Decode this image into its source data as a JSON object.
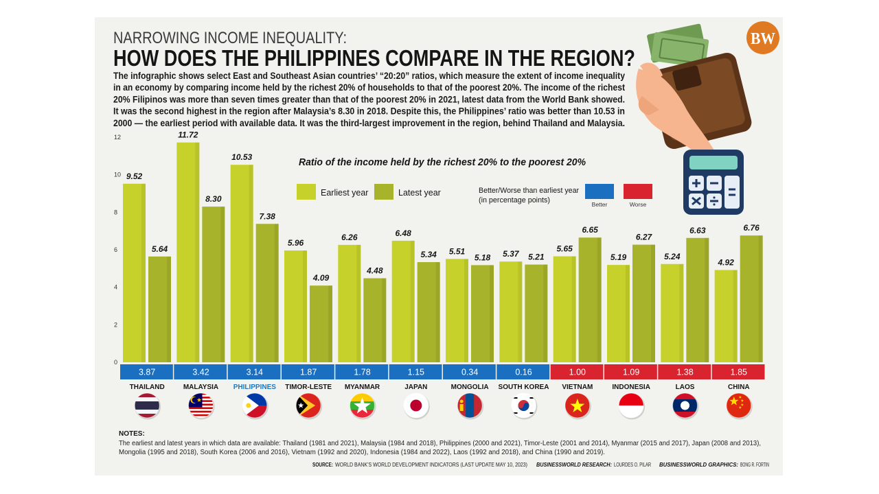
{
  "logo": "BW",
  "chart_data": {
    "type": "bar",
    "supertitle": "NARROWING INCOME INEQUALITY:",
    "title": "HOW DOES THE PHILIPPINES COMPARE IN THE REGION?",
    "description": [
      "The infographic shows select East and Southeast Asian countries’ “20:20” ratios, which measure the extent of income inequality",
      "in an economy by comparing income held by the richest 20% of households to that of the poorest 20%. The income of the richest",
      "20% Filipinos was more than seven times greater than that of the poorest 20% in 2021, latest data from the World Bank showed.",
      "It was the second highest in the region after Malaysia’s 8.30 in 2018. Despite this, the Philippines’ ratio was better than 10.53 in",
      "2000 — the earliest period with available data. It was the third-largest improvement in the region, behind Thailand and Malaysia."
    ],
    "subtitle": "Ratio of the income held by the richest 20% to the poorest 20%",
    "categories": [
      "THAILAND",
      "MALAYSIA",
      "PHILIPPINES",
      "TIMOR-LESTE",
      "MYANMAR",
      "JAPAN",
      "MONGOLIA",
      "SOUTH KOREA",
      "VIETNAM",
      "INDONESIA",
      "LAOS",
      "CHINA"
    ],
    "highlight_index": 2,
    "highlight_color": "#1a78c2",
    "series": [
      {
        "name": "Earliest year",
        "color": "#c6d22b",
        "values": [
          9.52,
          11.72,
          10.53,
          5.96,
          6.26,
          6.48,
          5.51,
          5.37,
          5.65,
          5.19,
          5.24,
          4.92
        ],
        "value_labels": [
          "9.52",
          "11.72",
          "10.53",
          "5.96",
          "6.26",
          "6.48",
          "5.51",
          "5.37",
          "5.65",
          "5.19",
          "5.24",
          "4.92"
        ]
      },
      {
        "name": "Latest year",
        "color": "#a7b32b",
        "values": [
          5.64,
          8.3,
          7.38,
          4.09,
          4.48,
          5.34,
          5.18,
          5.21,
          6.65,
          6.27,
          6.63,
          6.76
        ],
        "value_labels": [
          "5.64",
          "8.30",
          "7.38",
          "4.09",
          "4.48",
          "5.34",
          "5.18",
          "5.21",
          "6.65",
          "6.27",
          "6.63",
          "6.76"
        ]
      }
    ],
    "change": {
      "title": "Better/Worse than earliest year",
      "unit": "(in percentage points)",
      "values": [
        3.87,
        3.42,
        3.14,
        1.87,
        1.78,
        1.15,
        0.34,
        0.16,
        1,
        1.09,
        1.38,
        1.85
      ],
      "value_labels": [
        "3.87",
        "3.42",
        "3.14",
        "1.87",
        "1.78",
        "1.15",
        "0.34",
        "0.16",
        "1.00",
        "1.09",
        "1.38",
        "1.85"
      ],
      "better_label": "Better",
      "better_color": "#1a6fc1",
      "worse_label": "Worse",
      "worse_color": "#d9232e"
    },
    "ylim": [
      0,
      12
    ],
    "yticks": [
      0,
      2,
      4,
      6,
      8,
      10,
      12
    ],
    "grid": false,
    "notes_title": "NOTES:",
    "notes": [
      "The earliest and latest years in which data are available: Thailand (1981 and 2021), Malaysia (1984 and 2018), Philippines (2000 and 2021), Timor-Leste (2001 and 2014), Myanmar (2015 and 2017), Japan (2008 and 2013),",
      "Mongolia (1995 and 2018), South Korea (2006 and 2016), Vietnam (1992 and 2020), Indonesia (1984 and 2022), Laos (1992 and 2018), and China (1990 and 2019)."
    ],
    "source": {
      "source_label": "SOURCE:",
      "source_text": "WORLD BANK'S WORLD DEVELOPMENT INDICATORS (LAST UPDATE MAY 10, 2023)",
      "research_label": "BUSINESSWORLD RESEARCH:",
      "research_text": "LOURDES O. PILAR",
      "graphics_label": "BUSINESSWORLD GRAPHICS:",
      "graphics_text": "BONG R. FORTIN"
    }
  }
}
